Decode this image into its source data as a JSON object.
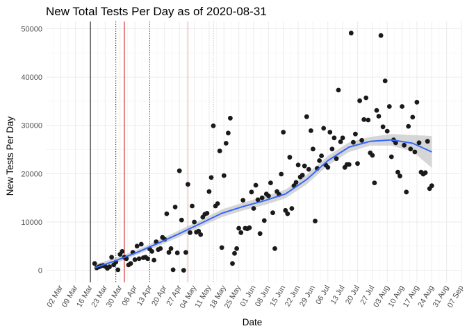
{
  "chart_data": {
    "type": "scatter",
    "title": "New Total Tests Per Day as of 2020-08-31",
    "xlabel": "Date",
    "ylabel": "New Tests Per Day",
    "x_type": "date",
    "xlim": [
      "2020-02-24",
      "2020-09-07"
    ],
    "ylim": [
      -2500,
      51500
    ],
    "y_ticks": [
      0,
      10000,
      20000,
      30000,
      40000,
      50000
    ],
    "x_ticks": [
      {
        "date": "2020-03-02",
        "label": "02 Mar"
      },
      {
        "date": "2020-03-09",
        "label": "09 Mar"
      },
      {
        "date": "2020-03-16",
        "label": "16 Mar"
      },
      {
        "date": "2020-03-23",
        "label": "23 Mar"
      },
      {
        "date": "2020-03-30",
        "label": "30 Mar"
      },
      {
        "date": "2020-04-06",
        "label": "06 Apr"
      },
      {
        "date": "2020-04-13",
        "label": "13 Apr"
      },
      {
        "date": "2020-04-20",
        "label": "20 Apr"
      },
      {
        "date": "2020-04-27",
        "label": "27 Apr"
      },
      {
        "date": "2020-05-04",
        "label": "04 May"
      },
      {
        "date": "2020-05-11",
        "label": "11 May"
      },
      {
        "date": "2020-05-18",
        "label": "18 May"
      },
      {
        "date": "2020-05-25",
        "label": "25 May"
      },
      {
        "date": "2020-06-01",
        "label": "01 Jun"
      },
      {
        "date": "2020-06-08",
        "label": "08 Jun"
      },
      {
        "date": "2020-06-15",
        "label": "15 Jun"
      },
      {
        "date": "2020-06-22",
        "label": "22 Jun"
      },
      {
        "date": "2020-06-29",
        "label": "29 Jun"
      },
      {
        "date": "2020-07-06",
        "label": "06 Jul"
      },
      {
        "date": "2020-07-13",
        "label": "13 Jul"
      },
      {
        "date": "2020-07-20",
        "label": "20 Jul"
      },
      {
        "date": "2020-07-27",
        "label": "27 Jul"
      },
      {
        "date": "2020-08-03",
        "label": "03 Aug"
      },
      {
        "date": "2020-08-10",
        "label": "10 Aug"
      },
      {
        "date": "2020-08-17",
        "label": "17 Aug"
      },
      {
        "date": "2020-08-24",
        "label": "24 Aug"
      },
      {
        "date": "2020-08-31",
        "label": "31 Aug"
      },
      {
        "date": "2020-09-07",
        "label": "07 Sep"
      }
    ],
    "grid": true,
    "legend": "none",
    "colors": {
      "points": "#1a1a1a",
      "smooth_line": "#3366ff",
      "confidence_band": "#c8c8c8",
      "grid": "#ebebeb",
      "vline_black": "#000000",
      "vline_red": "#cc0000"
    },
    "vlines": [
      {
        "date": "2020-03-16",
        "color": "#000000",
        "style": "solid"
      },
      {
        "date": "2020-03-28",
        "color": "#000000",
        "style": "dotted"
      },
      {
        "date": "2020-04-01",
        "color": "#cc0000",
        "style": "solid"
      },
      {
        "date": "2020-04-13",
        "color": "#cc0000",
        "style": "dotted"
      },
      {
        "date": "2020-05-01",
        "color": "#e8a0a0",
        "style": "solid"
      },
      {
        "date": "2020-05-13",
        "color": "#e8a0a0",
        "style": "dotted"
      }
    ],
    "points": [
      [
        "2020-03-18",
        1400
      ],
      [
        "2020-03-19",
        500
      ],
      [
        "2020-03-20",
        700
      ],
      [
        "2020-03-21",
        900
      ],
      [
        "2020-03-22",
        1000
      ],
      [
        "2020-03-23",
        800
      ],
      [
        "2020-03-24",
        400
      ],
      [
        "2020-03-25",
        700
      ],
      [
        "2020-03-26",
        2700
      ],
      [
        "2020-03-27",
        1100
      ],
      [
        "2020-03-28",
        1700
      ],
      [
        "2020-03-29",
        100
      ],
      [
        "2020-03-30",
        3300
      ],
      [
        "2020-03-31",
        3900
      ],
      [
        "2020-04-01",
        2700
      ],
      [
        "2020-04-02",
        2400
      ],
      [
        "2020-04-03",
        1100
      ],
      [
        "2020-04-04",
        1400
      ],
      [
        "2020-04-05",
        3700
      ],
      [
        "2020-04-06",
        2200
      ],
      [
        "2020-04-07",
        5000
      ],
      [
        "2020-04-08",
        2400
      ],
      [
        "2020-04-09",
        5400
      ],
      [
        "2020-04-10",
        2600
      ],
      [
        "2020-04-11",
        2700
      ],
      [
        "2020-04-12",
        2400
      ],
      [
        "2020-04-13",
        4400
      ],
      [
        "2020-04-14",
        3900
      ],
      [
        "2020-04-15",
        2100
      ],
      [
        "2020-04-16",
        5900
      ],
      [
        "2020-04-17",
        4300
      ],
      [
        "2020-04-18",
        4500
      ],
      [
        "2020-04-19",
        6800
      ],
      [
        "2020-04-20",
        6400
      ],
      [
        "2020-04-21",
        11700
      ],
      [
        "2020-04-22",
        3700
      ],
      [
        "2020-04-23",
        4500
      ],
      [
        "2020-04-24",
        100
      ],
      [
        "2020-04-25",
        13100
      ],
      [
        "2020-04-26",
        3600
      ],
      [
        "2020-04-27",
        20600
      ],
      [
        "2020-04-28",
        10400
      ],
      [
        "2020-04-29",
        0
      ],
      [
        "2020-04-30",
        3700
      ],
      [
        "2020-05-01",
        17800
      ],
      [
        "2020-05-02",
        7800
      ],
      [
        "2020-05-03",
        13300
      ],
      [
        "2020-05-04",
        10000
      ],
      [
        "2020-05-05",
        7900
      ],
      [
        "2020-05-06",
        8100
      ],
      [
        "2020-05-07",
        7400
      ],
      [
        "2020-05-08",
        11000
      ],
      [
        "2020-05-09",
        11600
      ],
      [
        "2020-05-10",
        11800
      ],
      [
        "2020-05-11",
        16300
      ],
      [
        "2020-05-12",
        19200
      ],
      [
        "2020-05-13",
        29900
      ],
      [
        "2020-05-14",
        13300
      ],
      [
        "2020-05-15",
        13800
      ],
      [
        "2020-05-16",
        24700
      ],
      [
        "2020-05-17",
        4700
      ],
      [
        "2020-05-18",
        19600
      ],
      [
        "2020-05-19",
        26300
      ],
      [
        "2020-05-20",
        28400
      ],
      [
        "2020-05-21",
        31500
      ],
      [
        "2020-05-22",
        1400
      ],
      [
        "2020-05-23",
        3500
      ],
      [
        "2020-05-24",
        4500
      ],
      [
        "2020-05-25",
        8700
      ],
      [
        "2020-05-26",
        7800
      ],
      [
        "2020-05-27",
        14500
      ],
      [
        "2020-05-28",
        8700
      ],
      [
        "2020-05-29",
        8600
      ],
      [
        "2020-05-30",
        8800
      ],
      [
        "2020-05-31",
        16200
      ],
      [
        "2020-06-01",
        12800
      ],
      [
        "2020-06-02",
        17600
      ],
      [
        "2020-06-03",
        14600
      ],
      [
        "2020-06-04",
        7600
      ],
      [
        "2020-06-05",
        15000
      ],
      [
        "2020-06-06",
        10300
      ],
      [
        "2020-06-07",
        15800
      ],
      [
        "2020-06-08",
        15400
      ],
      [
        "2020-06-09",
        18100
      ],
      [
        "2020-06-10",
        11900
      ],
      [
        "2020-06-11",
        4500
      ],
      [
        "2020-06-12",
        16300
      ],
      [
        "2020-06-13",
        15700
      ],
      [
        "2020-06-14",
        19900
      ],
      [
        "2020-06-15",
        28600
      ],
      [
        "2020-06-16",
        12400
      ],
      [
        "2020-06-17",
        11700
      ],
      [
        "2020-06-18",
        23400
      ],
      [
        "2020-06-19",
        12800
      ],
      [
        "2020-06-20",
        17500
      ],
      [
        "2020-06-21",
        18200
      ],
      [
        "2020-06-22",
        21800
      ],
      [
        "2020-06-23",
        19300
      ],
      [
        "2020-06-24",
        19700
      ],
      [
        "2020-06-25",
        21600
      ],
      [
        "2020-06-26",
        31800
      ],
      [
        "2020-06-27",
        20900
      ],
      [
        "2020-06-28",
        28900
      ],
      [
        "2020-06-29",
        25100
      ],
      [
        "2020-06-30",
        10200
      ],
      [
        "2020-07-01",
        21100
      ],
      [
        "2020-07-02",
        22700
      ],
      [
        "2020-07-03",
        23700
      ],
      [
        "2020-07-04",
        29400
      ],
      [
        "2020-07-05",
        21800
      ],
      [
        "2020-07-06",
        21300
      ],
      [
        "2020-07-07",
        28600
      ],
      [
        "2020-07-08",
        25100
      ],
      [
        "2020-07-09",
        27400
      ],
      [
        "2020-07-10",
        23100
      ],
      [
        "2020-07-11",
        37300
      ],
      [
        "2020-07-12",
        26600
      ],
      [
        "2020-07-13",
        27400
      ],
      [
        "2020-07-14",
        21300
      ],
      [
        "2020-07-15",
        21900
      ],
      [
        "2020-07-16",
        21900
      ],
      [
        "2020-07-17",
        49100
      ],
      [
        "2020-07-18",
        26500
      ],
      [
        "2020-07-19",
        28200
      ],
      [
        "2020-07-20",
        22100
      ],
      [
        "2020-07-21",
        35100
      ],
      [
        "2020-07-22",
        26900
      ],
      [
        "2020-07-23",
        31200
      ],
      [
        "2020-07-24",
        35700
      ],
      [
        "2020-07-25",
        31100
      ],
      [
        "2020-07-26",
        24300
      ],
      [
        "2020-07-27",
        23800
      ],
      [
        "2020-07-28",
        18100
      ],
      [
        "2020-07-29",
        33100
      ],
      [
        "2020-07-30",
        31900
      ],
      [
        "2020-07-31",
        48600
      ],
      [
        "2020-08-01",
        29700
      ],
      [
        "2020-08-02",
        39200
      ],
      [
        "2020-08-03",
        28800
      ],
      [
        "2020-08-04",
        33900
      ],
      [
        "2020-08-05",
        23500
      ],
      [
        "2020-08-06",
        27000
      ],
      [
        "2020-08-07",
        26400
      ],
      [
        "2020-08-08",
        20300
      ],
      [
        "2020-08-09",
        19500
      ],
      [
        "2020-08-10",
        33900
      ],
      [
        "2020-08-11",
        25900
      ],
      [
        "2020-08-12",
        16200
      ],
      [
        "2020-08-13",
        29800
      ],
      [
        "2020-08-14",
        25100
      ],
      [
        "2020-08-15",
        31700
      ],
      [
        "2020-08-16",
        24500
      ],
      [
        "2020-08-17",
        34800
      ],
      [
        "2020-08-18",
        26400
      ],
      [
        "2020-08-19",
        20300
      ],
      [
        "2020-08-20",
        19900
      ],
      [
        "2020-08-21",
        20200
      ],
      [
        "2020-08-22",
        26700
      ],
      [
        "2020-08-23",
        16900
      ],
      [
        "2020-08-24",
        17500
      ]
    ],
    "smooth": {
      "name": "",
      "x": [
        "2020-03-18",
        "2020-03-28",
        "2020-04-07",
        "2020-04-17",
        "2020-04-27",
        "2020-05-07",
        "2020-05-17",
        "2020-05-27",
        "2020-06-06",
        "2020-06-16",
        "2020-06-26",
        "2020-07-06",
        "2020-07-16",
        "2020-07-26",
        "2020-08-05",
        "2020-08-15",
        "2020-08-24"
      ],
      "y": [
        500,
        2000,
        3700,
        5600,
        7600,
        9700,
        11800,
        13200,
        14400,
        15800,
        18800,
        22700,
        25500,
        26700,
        27000,
        26300,
        24500
      ],
      "lower": [
        -200,
        1400,
        3200,
        5000,
        6900,
        9000,
        11000,
        12400,
        13500,
        14900,
        17800,
        21700,
        24500,
        25800,
        25800,
        24600,
        21200
      ],
      "upper": [
        1200,
        2600,
        4200,
        6200,
        8300,
        10400,
        12600,
        14000,
        15300,
        16700,
        19800,
        23700,
        26500,
        27600,
        28200,
        28000,
        27800
      ]
    }
  }
}
